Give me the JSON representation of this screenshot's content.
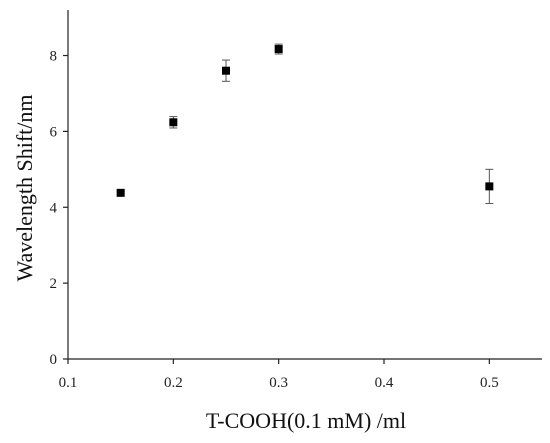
{
  "chart_data": {
    "type": "scatter",
    "title": "",
    "xlabel": "T-COOH(0.1 mM) /ml",
    "ylabel": "Wavelength Shift/nm",
    "xlim": [
      0.1,
      0.55
    ],
    "ylim": [
      0,
      9.2
    ],
    "xticks": [
      "0.1",
      "0.2",
      "0.3",
      "0.4",
      "0.5"
    ],
    "yticks": [
      "0",
      "2",
      "4",
      "6",
      "8"
    ],
    "grid": false,
    "legend": "none",
    "marker": "square",
    "series": [
      {
        "x": [
          0.15,
          0.2,
          0.25,
          0.3,
          0.5
        ],
        "y": [
          4.38,
          6.24,
          7.6,
          8.17,
          4.55
        ],
        "yerr": [
          0.03,
          0.15,
          0.28,
          0.13,
          0.45
        ]
      }
    ],
    "colors": {
      "marker": "#000000",
      "axis": "#222222",
      "errorbar": "#555555"
    }
  }
}
